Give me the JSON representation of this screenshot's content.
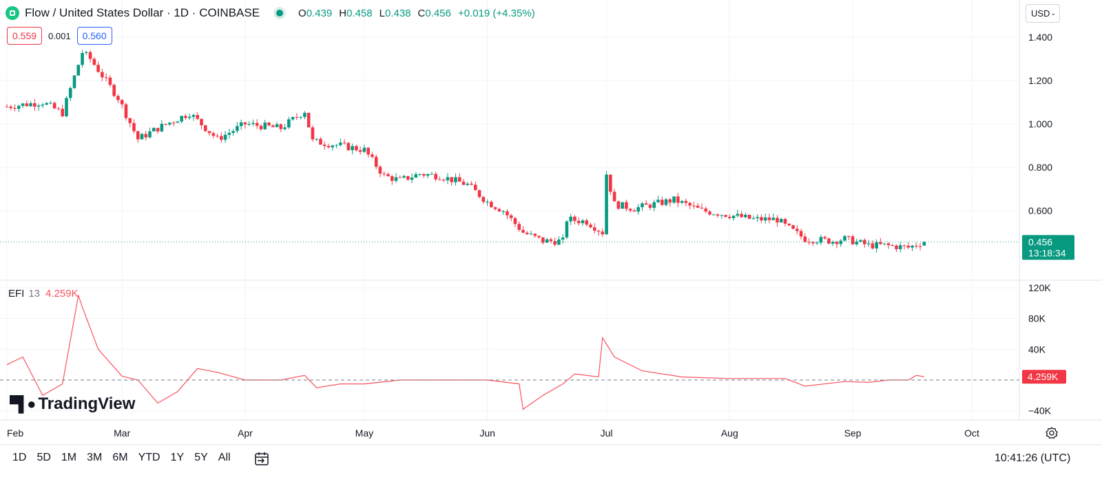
{
  "header": {
    "title": "Flow / United States Dollar · 1D · COINBASE",
    "ohlc": [
      {
        "key": "O",
        "value": "0.439"
      },
      {
        "key": "H",
        "value": "0.458"
      },
      {
        "key": "L",
        "value": "0.438"
      },
      {
        "key": "C",
        "value": "0.456"
      }
    ],
    "change": "+0.019 (+4.35%)"
  },
  "trade": {
    "sell": "0.559",
    "spread": "0.001",
    "buy": "0.560"
  },
  "currency": {
    "label": "USD"
  },
  "price_axis": {
    "last_price": "0.456",
    "countdown": "13:18:34"
  },
  "efi_axis": {
    "last_value": "4.259K"
  },
  "efi_legend": {
    "name": "EFI",
    "length": "13",
    "value": "4.259K"
  },
  "brand": {
    "name": "TradingView"
  },
  "bottom_bar": {
    "timeframes": [
      "1D",
      "5D",
      "1M",
      "3M",
      "6M",
      "YTD",
      "1Y",
      "5Y",
      "All"
    ],
    "clock": "10:41:26 (UTC)"
  },
  "colors": {
    "up": "#089981",
    "down": "#f23645",
    "efi": "#f7525f"
  },
  "icons": [
    "flow-logo-icon",
    "calendar-range-icon",
    "settings-gear-icon",
    "chevron-down-icon"
  ],
  "chart_data": [
    {
      "type": "candlestick",
      "title": "Flow / United States Dollar · 1D · COINBASE",
      "y_ticks": [
        "1.400",
        "1.200",
        "1.000",
        "0.800",
        "0.600"
      ],
      "x_ticks": [
        "Feb",
        "Mar",
        "Apr",
        "May",
        "Jun",
        "Jul",
        "Aug",
        "Sep",
        "Oct"
      ],
      "ylim": [
        0.35,
        1.45
      ],
      "last": {
        "open": 0.439,
        "high": 0.458,
        "low": 0.438,
        "close": 0.456
      },
      "series": [
        {
          "name": "",
          "dates": [
            "2024-02-01",
            "2024-02-10",
            "2024-02-15",
            "2024-02-20",
            "2024-02-22",
            "2024-02-29",
            "2024-03-05",
            "2024-03-10",
            "2024-03-18",
            "2024-03-25",
            "2024-04-01",
            "2024-04-10",
            "2024-04-16",
            "2024-04-18",
            "2024-04-25",
            "2024-05-01",
            "2024-05-06",
            "2024-05-10",
            "2024-05-15",
            "2024-05-20",
            "2024-05-27",
            "2024-06-01",
            "2024-06-05",
            "2024-06-09",
            "2024-06-10",
            "2024-06-15",
            "2024-06-20",
            "2024-06-21",
            "2024-06-26",
            "2024-06-30",
            "2024-07-01",
            "2024-07-03",
            "2024-07-08",
            "2024-07-13",
            "2024-07-18",
            "2024-07-25",
            "2024-08-01",
            "2024-08-07",
            "2024-08-13",
            "2024-08-15",
            "2024-08-20",
            "2024-08-27",
            "2024-08-30",
            "2024-09-05",
            "2024-09-09",
            "2024-09-15",
            "2024-09-19"
          ],
          "close": [
            1.08,
            1.1,
            1.05,
            1.33,
            1.3,
            1.12,
            0.93,
            0.98,
            1.05,
            0.93,
            1.0,
            0.98,
            1.06,
            0.92,
            0.9,
            0.88,
            0.76,
            0.74,
            0.77,
            0.76,
            0.72,
            0.64,
            0.6,
            0.52,
            0.5,
            0.46,
            0.46,
            0.56,
            0.55,
            0.5,
            0.77,
            0.63,
            0.61,
            0.63,
            0.65,
            0.6,
            0.58,
            0.56,
            0.56,
            0.53,
            0.47,
            0.46,
            0.47,
            0.44,
            0.44,
            0.43,
            0.456
          ]
        }
      ]
    },
    {
      "type": "line",
      "title": "EFI 13",
      "y_ticks": [
        "120K",
        "80K",
        "40K",
        "−40K"
      ],
      "series": [
        {
          "name": "EFI",
          "dates": [
            "2024-02-01",
            "2024-02-05",
            "2024-02-10",
            "2024-02-15",
            "2024-02-19",
            "2024-02-20",
            "2024-02-24",
            "2024-03-01",
            "2024-03-05",
            "2024-03-10",
            "2024-03-15",
            "2024-03-20",
            "2024-03-25",
            "2024-04-01",
            "2024-04-10",
            "2024-04-16",
            "2024-04-19",
            "2024-04-25",
            "2024-05-01",
            "2024-05-10",
            "2024-05-20",
            "2024-06-01",
            "2024-06-09",
            "2024-06-10",
            "2024-06-15",
            "2024-06-20",
            "2024-06-23",
            "2024-06-29",
            "2024-06-30",
            "2024-07-03",
            "2024-07-10",
            "2024-07-20",
            "2024-08-01",
            "2024-08-10",
            "2024-08-15",
            "2024-08-20",
            "2024-08-30",
            "2024-09-05",
            "2024-09-10",
            "2024-09-15",
            "2024-09-17",
            "2024-09-19"
          ],
          "values": [
            20,
            30,
            -20,
            -5,
            110,
            95,
            40,
            5,
            0,
            -30,
            -15,
            15,
            10,
            0,
            0,
            6,
            -10,
            -5,
            -5,
            0,
            0,
            0,
            -5,
            -38,
            -20,
            -5,
            8,
            4,
            55,
            30,
            12,
            4,
            2,
            2,
            2,
            -8,
            -2,
            -3,
            0,
            0,
            6,
            4.259
          ]
        }
      ]
    }
  ]
}
